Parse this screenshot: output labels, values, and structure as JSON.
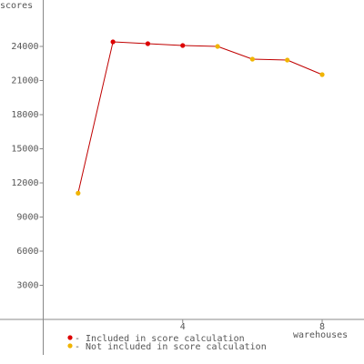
{
  "chart_data": {
    "type": "line",
    "y_label": "scores",
    "x_label": "warehouses",
    "x": [
      1,
      2,
      3,
      4,
      5,
      6,
      7,
      8
    ],
    "line_color": "#c00000",
    "series": [
      {
        "name": "- Included in score calculation",
        "color": "#dd0000",
        "values": [
          null,
          24400,
          24240,
          24080,
          null,
          null,
          null,
          null
        ]
      },
      {
        "name": "- Not included in score calculation",
        "color": "#f0b400",
        "values": [
          11100,
          null,
          null,
          null,
          24000,
          22880,
          22800,
          21520
        ]
      }
    ],
    "xlim": [
      -1.24,
      9.2
    ],
    "xticks": [
      4,
      8
    ],
    "ylim": [
      -3120,
      28080
    ],
    "yticks": [
      3000,
      6000,
      9000,
      12000,
      15000,
      18000,
      21000,
      24000
    ],
    "grid": false
  }
}
